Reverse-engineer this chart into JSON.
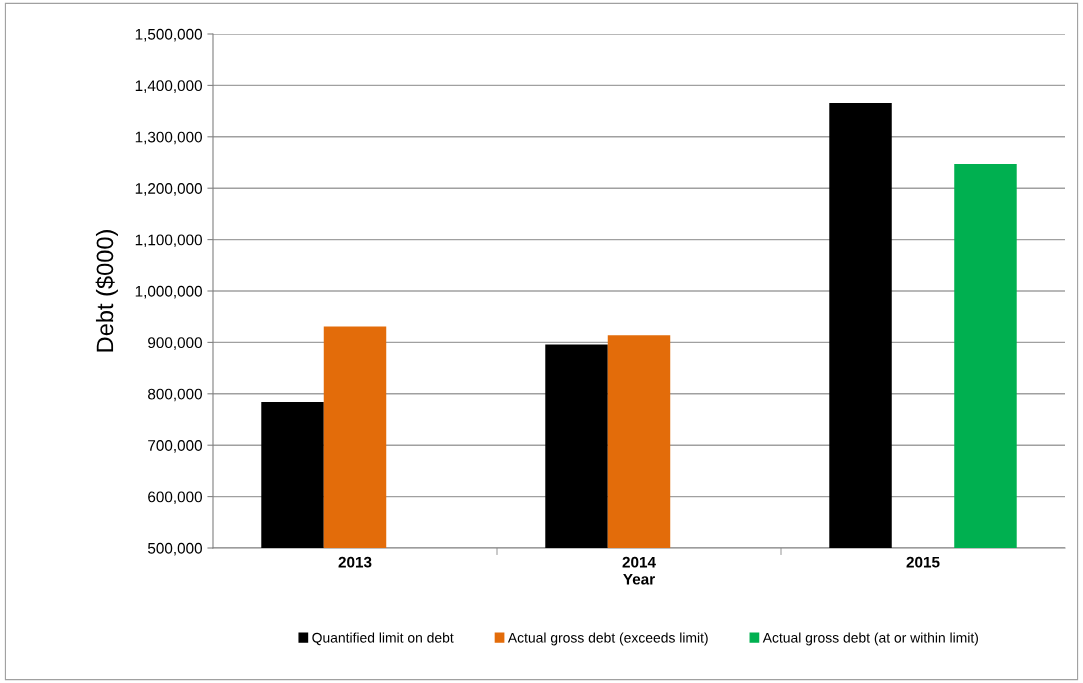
{
  "chart_data": {
    "type": "bar",
    "xlabel": "Year",
    "ylabel": "Debt ($000)",
    "categories": [
      "2013",
      "2014",
      "2015"
    ],
    "series": [
      {
        "name": "Quantified limit on debt",
        "color": "#000000",
        "values": [
          784000,
          896000,
          1366000
        ]
      },
      {
        "name": "Actual gross debt (exceeds limit)",
        "color": "#e36c0a",
        "values": [
          931000,
          914000,
          null
        ]
      },
      {
        "name": "Actual gross debt (at or within limit)",
        "color": "#00b050",
        "values": [
          null,
          null,
          1247000
        ]
      }
    ],
    "ylim": [
      500000,
      1500000
    ],
    "yticks": [
      {
        "value": 500000,
        "label": "500,000"
      },
      {
        "value": 600000,
        "label": "600,000"
      },
      {
        "value": 700000,
        "label": "700,000"
      },
      {
        "value": 800000,
        "label": "800,000"
      },
      {
        "value": 900000,
        "label": "900,000"
      },
      {
        "value": 1000000,
        "label": "1,000,000"
      },
      {
        "value": 1100000,
        "label": "1,100,000"
      },
      {
        "value": 1200000,
        "label": "1,200,000"
      },
      {
        "value": 1300000,
        "label": "1,300,000"
      },
      {
        "value": 1400000,
        "label": "1,400,000"
      },
      {
        "value": 1500000,
        "label": "1,500,000"
      }
    ],
    "grid": "y",
    "legend": "bottom"
  }
}
